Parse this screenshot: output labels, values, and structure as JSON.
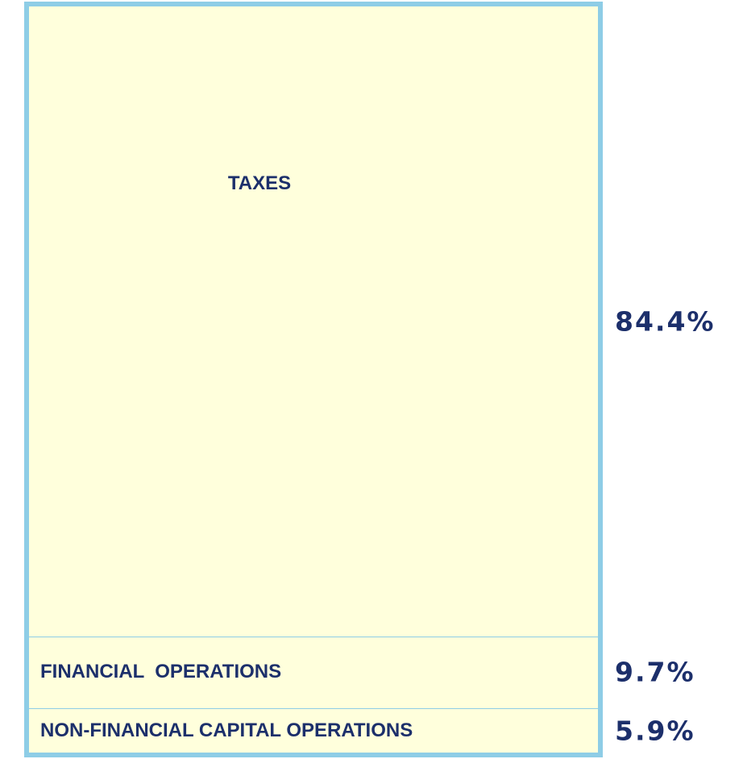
{
  "chart_data": {
    "type": "bar",
    "stacked": true,
    "categories": [
      "TAXES",
      "FINANCIAL  OPERATIONS",
      "NON-FINANCIAL CAPITAL OPERATIONS"
    ],
    "values": [
      84.4,
      9.7,
      5.9
    ],
    "value_labels": [
      "84.4%",
      "9.7%",
      "5.9%"
    ],
    "color": "#ffffdc",
    "edge_color": "#8ecde6"
  }
}
